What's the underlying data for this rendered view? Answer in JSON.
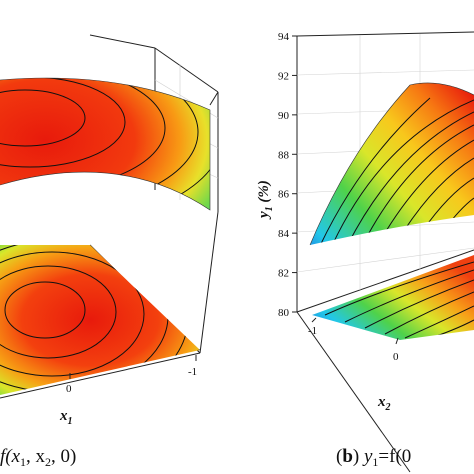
{
  "chart_data": [
    {
      "type": "surface3d",
      "panel": "a",
      "caption_text": "f(x1, x2, 0)",
      "visible_axis_label": "x1",
      "x1_ticks": [
        "0",
        "-1"
      ],
      "surface": "downward-opening paraboloid, maximum near the center of the x1-x2 plane",
      "projected_contours": true,
      "colormap": [
        "#1a1aa8",
        "#1f7fe0",
        "#22c7e8",
        "#4fd24a",
        "#d9e62a",
        "#f8c81c",
        "#f77a12",
        "#e81a0c"
      ]
    },
    {
      "type": "surface3d",
      "panel": "b",
      "caption_label": "b",
      "caption_text": "y1 = f(0",
      "y_axis_label": "y1 (%)",
      "x_axis_label": "x2",
      "y_ticks": [
        "80",
        "82",
        "84",
        "86",
        "88",
        "90",
        "92",
        "94"
      ],
      "ylim": [
        80,
        94
      ],
      "x2_ticks": [
        "-1",
        "0"
      ],
      "surface": "ridge shaped, maximum y1 about 91 near x2 = 0, falling to about 84 at x2 = -1",
      "projected_contours": true,
      "colormap": [
        "#1a1aa8",
        "#1f7fe0",
        "#22c7e8",
        "#4fd24a",
        "#d9e62a",
        "#f8c81c",
        "#f77a12",
        "#e81a0c"
      ]
    }
  ],
  "panel_a": {
    "x1_label": "x",
    "x1_sub": "1",
    "tick_0": "0",
    "tick_m1": "-1",
    "caption_1": "f(x",
    "caption_2": "1",
    "caption_3": ", x",
    "caption_4": "2",
    "caption_5": ", 0)"
  },
  "panel_b": {
    "ylabel": "y",
    "ylabel_sub": "1",
    "ylabel_unit": " (%)",
    "xlabel": "x",
    "xlabel_sub": "2",
    "yticks": [
      "80",
      "82",
      "84",
      "86",
      "88",
      "90",
      "92",
      "94"
    ],
    "xtick_m1": "-1",
    "xtick_0": "0",
    "caption_paren_open": "(",
    "caption_letter": "b",
    "caption_paren_close": ") ",
    "caption_y": "y",
    "caption_sub": "1",
    "caption_rest": "=f(0"
  }
}
